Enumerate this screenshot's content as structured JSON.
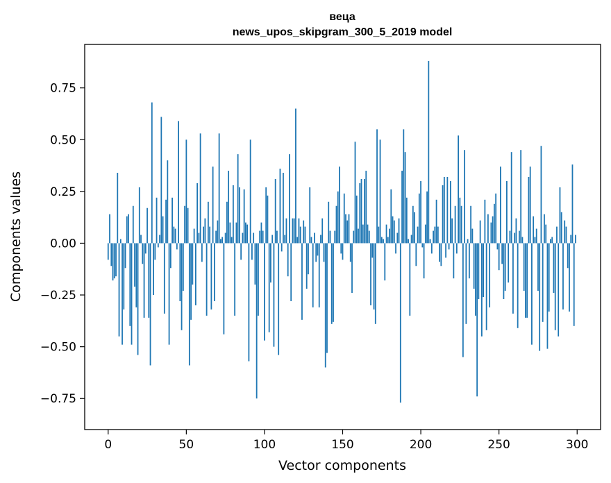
{
  "chart_data": {
    "type": "bar",
    "title": "веца",
    "subtitle": "news_upos_skipgram_300_5_2019 model",
    "xlabel": "Vector components",
    "ylabel": "Components values",
    "xlim": [
      -15,
      315
    ],
    "ylim": [
      -0.9,
      0.96
    ],
    "x_ticks": [
      0,
      50,
      100,
      150,
      200,
      250,
      300
    ],
    "x_tick_labels": [
      "0",
      "50",
      "100",
      "150",
      "200",
      "250",
      "300"
    ],
    "y_ticks": [
      -0.75,
      -0.5,
      -0.25,
      0.0,
      0.25,
      0.5,
      0.75
    ],
    "y_tick_labels": [
      "−0.75",
      "−0.50",
      "−0.25",
      "0.00",
      "0.25",
      "0.50",
      "0.75"
    ],
    "bar_color": "#1f77b4",
    "grid": false,
    "series": [
      {
        "values": [
          -0.08,
          0.14,
          -0.11,
          -0.18,
          -0.17,
          -0.16,
          0.34,
          -0.45,
          0.02,
          -0.49,
          -0.32,
          -0.12,
          0.13,
          0.14,
          -0.4,
          -0.49,
          0.18,
          -0.21,
          -0.31,
          -0.54,
          0.27,
          0.04,
          -0.1,
          -0.36,
          -0.05,
          0.17,
          -0.36,
          -0.59,
          0.68,
          -0.25,
          -0.08,
          0.22,
          -0.02,
          0.04,
          0.61,
          0.13,
          -0.34,
          0.21,
          0.4,
          -0.49,
          -0.12,
          0.22,
          0.08,
          0.07,
          -0.03,
          0.59,
          -0.28,
          -0.42,
          -0.23,
          0.18,
          0.5,
          0.17,
          -0.59,
          -0.37,
          -0.2,
          0.07,
          -0.3,
          0.29,
          0.05,
          0.53,
          -0.09,
          0.08,
          0.12,
          -0.35,
          0.2,
          0.08,
          -0.32,
          0.37,
          -0.28,
          0.06,
          0.11,
          0.53,
          0.02,
          0.03,
          -0.44,
          0.05,
          0.2,
          0.35,
          0.1,
          0.03,
          0.28,
          -0.35,
          0.1,
          0.43,
          0.27,
          -0.08,
          0.05,
          0.26,
          0.1,
          0.09,
          -0.57,
          0.5,
          -0.08,
          0.05,
          -0.2,
          -0.75,
          -0.35,
          0.06,
          0.1,
          0.06,
          -0.47,
          0.27,
          0.23,
          -0.43,
          -0.19,
          0.04,
          -0.5,
          0.31,
          0.06,
          -0.54,
          0.36,
          -0.04,
          0.34,
          0.04,
          0.12,
          -0.16,
          0.43,
          -0.28,
          0.12,
          0.12,
          0.65,
          0.03,
          0.12,
          0.08,
          -0.37,
          0.11,
          0.08,
          -0.22,
          -0.15,
          0.27,
          0.03,
          -0.31,
          0.05,
          -0.09,
          -0.06,
          -0.31,
          0.04,
          0.12,
          -0.09,
          -0.6,
          -0.53,
          0.2,
          0.06,
          -0.39,
          -0.38,
          0.06,
          0.18,
          0.25,
          0.37,
          -0.05,
          -0.08,
          0.24,
          0.14,
          0.11,
          0.14,
          -0.09,
          -0.24,
          0.06,
          0.49,
          0.23,
          0.07,
          0.29,
          0.31,
          0.09,
          0.31,
          0.35,
          0.09,
          0.06,
          -0.3,
          -0.07,
          -0.32,
          -0.39,
          0.55,
          0.08,
          0.5,
          0.03,
          0.02,
          -0.18,
          0.09,
          0.03,
          0.07,
          0.26,
          0.13,
          0.11,
          -0.05,
          0.05,
          0.12,
          -0.77,
          0.35,
          0.55,
          0.44,
          0.22,
          0.02,
          -0.35,
          0.04,
          0.18,
          0.15,
          -0.11,
          0.08,
          0.24,
          0.3,
          -0.02,
          -0.17,
          0.09,
          0.25,
          0.88,
          0.02,
          -0.05,
          0.06,
          0.08,
          0.21,
          0.08,
          -0.09,
          -0.11,
          0.28,
          0.32,
          -0.07,
          0.32,
          -0.03,
          0.3,
          0.12,
          -0.17,
          0.18,
          -0.05,
          0.52,
          0.22,
          0.18,
          -0.55,
          0.45,
          -0.39,
          0.02,
          -0.17,
          0.18,
          0.07,
          -0.22,
          -0.35,
          -0.74,
          -0.27,
          0.11,
          -0.45,
          -0.26,
          0.21,
          -0.42,
          0.14,
          -0.31,
          0.1,
          0.13,
          0.19,
          0.24,
          -0.03,
          -0.13,
          0.37,
          -0.1,
          -0.27,
          -0.23,
          0.3,
          -0.19,
          0.06,
          0.44,
          -0.34,
          0.05,
          0.12,
          -0.41,
          0.06,
          0.45,
          0.03,
          -0.23,
          -0.36,
          -0.36,
          0.32,
          0.37,
          -0.49,
          0.13,
          0.03,
          0.07,
          -0.23,
          -0.52,
          0.47,
          -0.38,
          0.14,
          0.09,
          -0.51,
          -0.33,
          0.02,
          0.03,
          -0.24,
          -0.42,
          0.08,
          -0.45,
          0.27,
          0.15,
          -0.32,
          0.11,
          0.08,
          -0.12,
          -0.33,
          0.04,
          0.38,
          -0.4,
          0.04
        ]
      }
    ]
  }
}
